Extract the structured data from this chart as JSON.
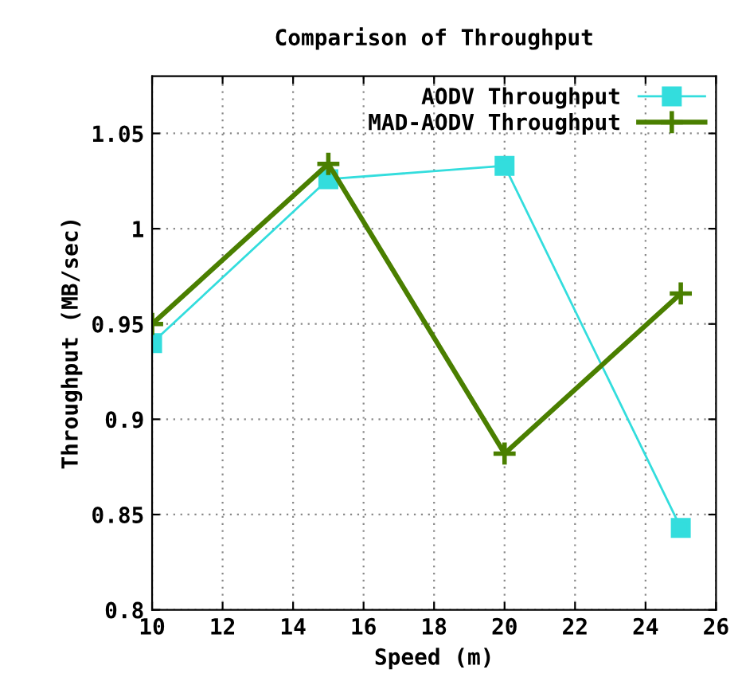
{
  "chart_data": {
    "type": "line",
    "title": "Comparison of Throughput",
    "xlabel": "Speed (m)",
    "ylabel": "Throughput (MB/sec)",
    "x": [
      10,
      15,
      20,
      25
    ],
    "series": [
      {
        "name": "AODV Throughput",
        "color": "#33dddd",
        "values": [
          0.94,
          1.026,
          1.033,
          0.843
        ],
        "marker": "square"
      },
      {
        "name": "MAD-AODV Throughput",
        "color": "#4a7f00",
        "values": [
          0.95,
          1.034,
          0.882,
          0.966
        ],
        "marker": "cross"
      }
    ],
    "xlim": [
      10,
      26
    ],
    "xticks": [
      10,
      12,
      14,
      16,
      18,
      20,
      22,
      24,
      26
    ],
    "ylim": [
      0.8,
      1.08
    ],
    "yticks": [
      0.8,
      0.85,
      0.9,
      0.95,
      1,
      1.05
    ],
    "grid": true,
    "legend": "top right",
    "line_style": "solid"
  }
}
